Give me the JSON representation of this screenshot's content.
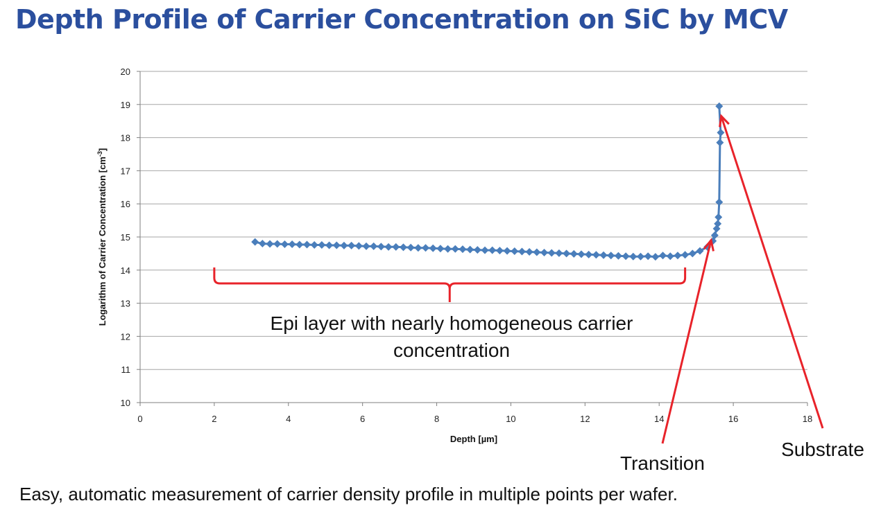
{
  "page": {
    "title": "Depth Profile of Carrier Concentration on SiC by MCV",
    "caption": "Easy, automatic measurement of carrier density profile in multiple points per  wafer."
  },
  "colors": {
    "title": "#2b4f9e",
    "series": "#4a7ebb",
    "annotation": "#e8232a",
    "grid": "#a6a6a6"
  },
  "chart_data": {
    "type": "line",
    "title": "",
    "xlabel": "Depth [µm]",
    "ylabel_main": "Logarithm of Carrier Concentration  [cm",
    "ylabel_sup": "-3",
    "ylabel_end": "]",
    "xlim": [
      0,
      18
    ],
    "ylim": [
      10,
      20
    ],
    "xticks": [
      "0",
      "2",
      "4",
      "6",
      "8",
      "10",
      "12",
      "14",
      "16",
      "18"
    ],
    "yticks": [
      "10",
      "11",
      "12",
      "13",
      "14",
      "15",
      "16",
      "17",
      "18",
      "19",
      "20"
    ],
    "grid": "horizontal",
    "marker": "diamond",
    "series": [
      {
        "x": [
          3.1,
          3.3,
          3.5,
          3.7,
          3.9,
          4.1,
          4.3,
          4.5,
          4.7,
          4.9,
          5.1,
          5.3,
          5.5,
          5.7,
          5.9,
          6.1,
          6.3,
          6.5,
          6.7,
          6.9,
          7.1,
          7.3,
          7.5,
          7.7,
          7.9,
          8.1,
          8.3,
          8.5,
          8.7,
          8.9,
          9.1,
          9.3,
          9.5,
          9.7,
          9.9,
          10.1,
          10.3,
          10.5,
          10.7,
          10.9,
          11.1,
          11.3,
          11.5,
          11.7,
          11.9,
          12.1,
          12.3,
          12.5,
          12.7,
          12.9,
          13.1,
          13.3,
          13.5,
          13.7,
          13.9,
          14.1,
          14.3,
          14.5,
          14.7,
          14.9,
          15.1,
          15.3,
          15.45,
          15.5,
          15.55,
          15.58,
          15.6,
          15.62,
          15.64,
          15.66,
          15.62
        ],
        "y": [
          14.85,
          14.8,
          14.79,
          14.79,
          14.78,
          14.78,
          14.77,
          14.77,
          14.76,
          14.76,
          14.75,
          14.75,
          14.74,
          14.74,
          14.73,
          14.72,
          14.72,
          14.71,
          14.7,
          14.7,
          14.69,
          14.68,
          14.67,
          14.67,
          14.66,
          14.65,
          14.64,
          14.64,
          14.63,
          14.62,
          14.61,
          14.6,
          14.6,
          14.59,
          14.58,
          14.57,
          14.56,
          14.55,
          14.54,
          14.53,
          14.52,
          14.51,
          14.5,
          14.49,
          14.48,
          14.47,
          14.46,
          14.45,
          14.44,
          14.43,
          14.42,
          14.41,
          14.41,
          14.42,
          14.4,
          14.44,
          14.42,
          14.44,
          14.46,
          14.5,
          14.58,
          14.7,
          14.88,
          15.05,
          15.25,
          15.4,
          15.6,
          16.05,
          17.85,
          18.15,
          18.95
        ]
      }
    ],
    "annotations": {
      "brace_label_line1": "Epi layer with nearly homogeneous carrier",
      "brace_label_line2": "concentration",
      "brace_range": [
        2.0,
        14.7
      ],
      "transition_label": "Transition",
      "transition_target": [
        15.4,
        14.9
      ],
      "substrate_label": "Substrate",
      "substrate_target": [
        15.6,
        18.65
      ]
    }
  }
}
